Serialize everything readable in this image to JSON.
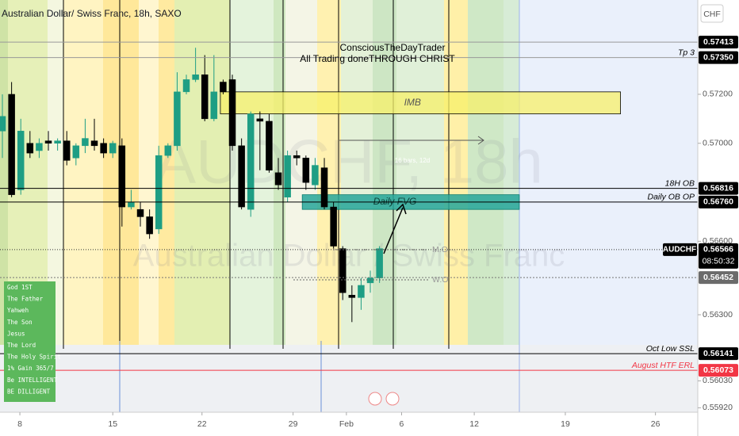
{
  "chart_data": {
    "type": "candlestick",
    "title": "Australian Dollar/ Swiss Franc, 18h, SAXO",
    "currency": "CHF",
    "watermark": {
      "symbol": "AUDCHF, 18h",
      "description": "Australian Dollar / Swiss Franc"
    },
    "notes": [
      "ConsciousTheDayTrader",
      "All Trading doneTHROUGH CHRIST"
    ],
    "x": [
      0,
      1,
      2,
      3,
      4,
      5,
      6,
      7,
      8,
      9,
      10,
      11,
      12,
      13,
      14,
      15,
      16,
      17,
      18,
      19,
      20,
      21,
      22,
      23,
      24,
      25,
      26,
      27,
      28,
      29,
      30,
      31,
      32,
      33,
      34,
      35,
      36,
      37,
      38,
      39,
      40,
      41
    ],
    "open": [
      0.5705,
      0.572,
      0.5681,
      0.57,
      0.5697,
      0.5701,
      0.57,
      0.5701,
      0.5694,
      0.5699,
      0.5701,
      0.57,
      0.5696,
      0.5699,
      0.5674,
      0.5673,
      0.567,
      0.5665,
      0.5695,
      0.5699,
      0.5721,
      0.5726,
      0.5728,
      0.571,
      0.5725,
      0.5726,
      0.5699,
      0.5673,
      0.571,
      0.5709,
      0.5688,
      0.5678,
      0.5695,
      0.5694,
      0.5683,
      0.569,
      0.5674,
      0.5657,
      0.5638,
      0.5637,
      0.5643,
      0.5645
    ],
    "high": [
      0.572,
      0.5725,
      0.571,
      0.5705,
      0.5702,
      0.5705,
      0.5702,
      0.5705,
      0.57,
      0.571,
      0.571,
      0.5702,
      0.5701,
      0.5702,
      0.5681,
      0.5676,
      0.5673,
      0.5699,
      0.57,
      0.5729,
      0.5728,
      0.5739,
      0.5736,
      0.5736,
      0.5726,
      0.5728,
      0.5702,
      0.5713,
      0.5713,
      0.5712,
      0.5694,
      0.5697,
      0.5697,
      0.5695,
      0.5694,
      0.5694,
      0.5676,
      0.5658,
      0.5642,
      0.5645,
      0.5648,
      0.5658
    ],
    "low": [
      0.5694,
      0.5678,
      0.5679,
      0.5694,
      0.5694,
      0.5697,
      0.5697,
      0.5691,
      0.5691,
      0.5696,
      0.5697,
      0.5694,
      0.5694,
      0.5666,
      0.5673,
      0.5666,
      0.5661,
      0.5663,
      0.5694,
      0.5697,
      0.572,
      0.5725,
      0.5709,
      0.5709,
      0.572,
      0.5697,
      0.5673,
      0.567,
      0.5689,
      0.5688,
      0.5681,
      0.5676,
      0.5691,
      0.5681,
      0.5681,
      0.5673,
      0.5657,
      0.5636,
      0.5627,
      0.5632,
      0.5639,
      0.5643
    ],
    "close": [
      0.5711,
      0.5679,
      0.5705,
      0.5696,
      0.57,
      0.57,
      0.5701,
      0.5693,
      0.5699,
      0.5702,
      0.5699,
      0.5696,
      0.57,
      0.5674,
      0.5676,
      0.567,
      0.5663,
      0.5695,
      0.5699,
      0.5721,
      0.5726,
      0.5728,
      0.571,
      0.5721,
      0.5721,
      0.5699,
      0.5674,
      0.5712,
      0.5709,
      0.5689,
      0.5683,
      0.5695,
      0.5694,
      0.5684,
      0.5691,
      0.5674,
      0.5658,
      0.5639,
      0.5637,
      0.5642,
      0.5645,
      0.5657
    ],
    "up_color": "#1e9e84",
    "down_color": "#000000",
    "xlim": [
      -0.26,
      75.6
    ],
    "xticks": [
      {
        "value": 1.9,
        "label": "8"
      },
      {
        "value": 12.0,
        "label": "15"
      },
      {
        "value": 21.7,
        "label": "22"
      },
      {
        "value": 31.6,
        "label": "29"
      },
      {
        "value": 37.4,
        "label": "Feb"
      },
      {
        "value": 43.4,
        "label": "6"
      },
      {
        "value": 51.3,
        "label": "12"
      },
      {
        "value": 61.2,
        "label": "19"
      },
      {
        "value": 71.0,
        "label": "26"
      }
    ],
    "ylim": [
      0.55902,
      0.57585
    ],
    "yticks": [
      {
        "value": 0.572,
        "label": "0.57200"
      },
      {
        "value": 0.57,
        "label": "0.57000"
      },
      {
        "value": 0.566,
        "label": "0.56600"
      },
      {
        "value": 0.563,
        "label": "0.56300"
      },
      {
        "value": 0.5603,
        "label": "0.56030"
      },
      {
        "value": 0.5592,
        "label": "0.55920"
      }
    ],
    "levels": [
      {
        "value": 0.57413,
        "color": "#999999"
      },
      {
        "label": "Tp 3",
        "value": 0.5735,
        "value_label": "0.57350",
        "color": "#999999"
      },
      {
        "label": "18H OB",
        "value": 0.56816,
        "color": "#000000"
      },
      {
        "label": "Daily OB OP",
        "value": 0.5676,
        "value_label": "0.56760",
        "color": "#000000"
      },
      {
        "value": 0.56452,
        "color": "#777777"
      },
      {
        "label": "Oct Low SSL",
        "value": 0.56141,
        "color": "#000000"
      },
      {
        "label": "August HTF ERL",
        "value": 0.56073,
        "color": "#f23645"
      }
    ],
    "last_price": {
      "symbol": "AUDCHF",
      "value": 0.56566,
      "countdown": "08:50:32"
    },
    "zones": [
      {
        "label": "IMB",
        "top": 0.5721,
        "bottom": 0.5712,
        "x0": 23.7,
        "x1": 67.2,
        "color": "#f7f06a"
      },
      {
        "label": "Daily FVG",
        "top": 0.5679,
        "bottom": 0.5673,
        "x0": 32.6,
        "x1": 56.2,
        "color": "#26a69a"
      }
    ],
    "marks": [
      "M.O",
      "W.O"
    ],
    "ruler": "16 bars, 12d",
    "affirmations": [
      "God 1ST",
      "The Father",
      "Yahweh",
      "The Son",
      "Jesus",
      "The Lord",
      "The Holy Spirit",
      "1% Gain 365/7",
      "Be INTELLIGENT",
      "BE DILLIGENT"
    ]
  }
}
